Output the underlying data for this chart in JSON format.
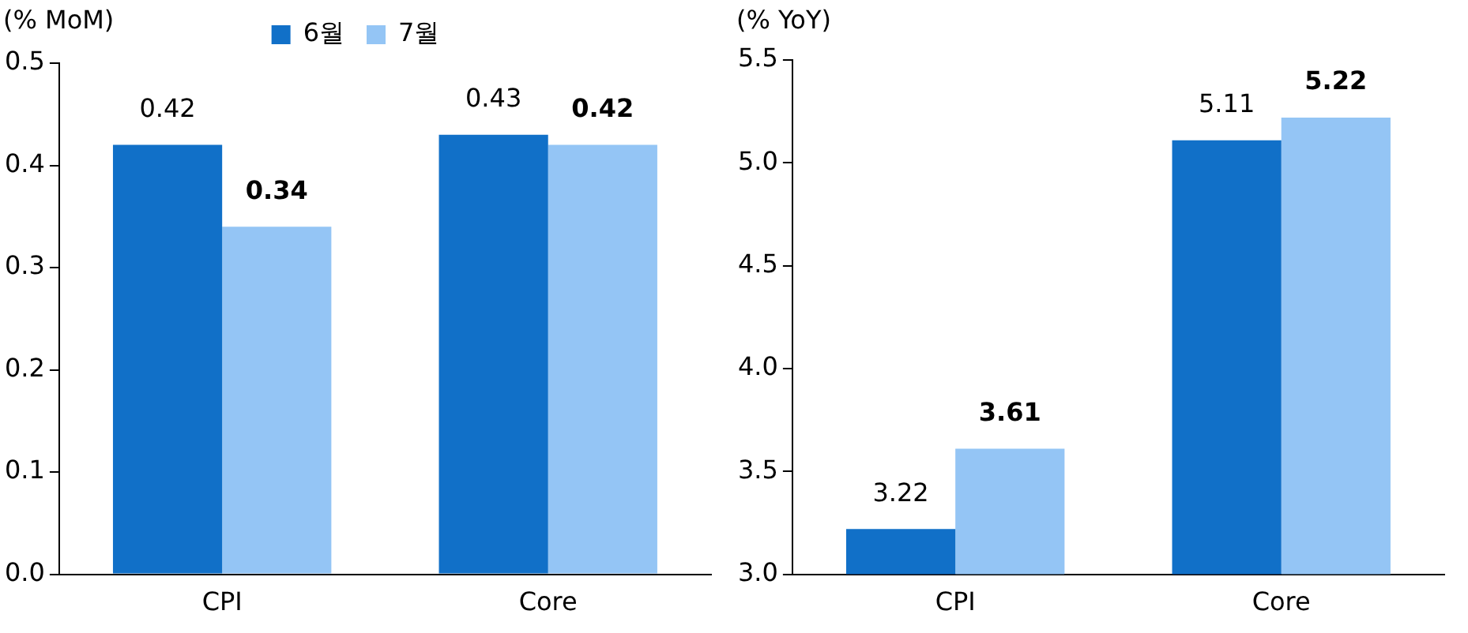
{
  "chart_data": [
    {
      "type": "bar",
      "ylabel": "(% MoM)",
      "categories": [
        "CPI",
        "Core"
      ],
      "series": [
        {
          "name": "6월",
          "color": "#1170c8",
          "values": [
            0.42,
            0.43
          ]
        },
        {
          "name": "7월",
          "color": "#94c5f5",
          "values": [
            0.34,
            0.42
          ]
        }
      ],
      "ylim": [
        0,
        0.5
      ],
      "yticks": [
        {
          "value": 0,
          "label": "0.0"
        },
        0.1,
        0.2,
        0.3,
        0.4,
        0.5
      ],
      "grid": false,
      "legend": "top",
      "data_labels": true
    },
    {
      "type": "bar",
      "ylabel": "(% YoY)",
      "categories": [
        "CPI",
        "Core"
      ],
      "series": [
        {
          "color": "#1170c8",
          "values": [
            3.22,
            5.11
          ]
        },
        {
          "color": "#94c5f5",
          "values": [
            3.61,
            5.22
          ]
        }
      ],
      "ylim": [
        3,
        5.5
      ],
      "yticks": [
        {
          "value": 3,
          "label": "3.0"
        },
        3.5,
        {
          "value": 4,
          "label": "4.0"
        },
        4.5,
        {
          "value": 5,
          "label": "5.0"
        },
        5.5
      ],
      "grid": false,
      "legend": false,
      "data_labels": true
    }
  ]
}
